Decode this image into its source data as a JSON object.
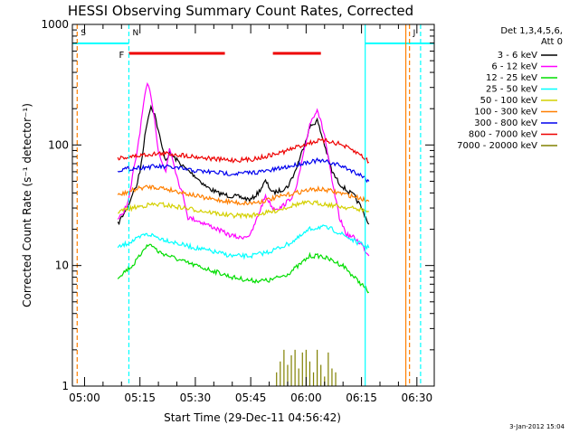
{
  "chart_data": {
    "type": "line",
    "title": "HESSI Observing Summary Count Rates, Corrected",
    "xlabel": "Start Time (29-Dec-11 04:56:42)",
    "ylabel": "Corrected Count Rate (s⁻¹ detector⁻¹)",
    "y_scale": "log",
    "ylim": [
      1,
      1000
    ],
    "xlim": [
      "04:56:42",
      "06:34:42"
    ],
    "x_ticks": [
      "05:00",
      "05:15",
      "05:30",
      "05:45",
      "06:00",
      "06:15",
      "06:30"
    ],
    "y_ticks": [
      "1",
      "10",
      "100",
      "1000"
    ],
    "date_stamp": "3-Jan-2012 15:04",
    "legend_header": [
      "Det 1,3,4,5,6,",
      "Att 0"
    ],
    "legend_position": "right",
    "series": [
      {
        "name": "3 - 6 keV",
        "color": "#000000",
        "x": [
          "05:09",
          "05:10",
          "05:11",
          "05:12",
          "05:13",
          "05:14",
          "05:15",
          "05:16",
          "05:17",
          "05:18",
          "05:19",
          "05:20",
          "05:21",
          "05:22",
          "05:23",
          "05:25",
          "05:27",
          "05:30",
          "05:33",
          "05:36",
          "05:39",
          "05:42",
          "05:45",
          "05:47",
          "05:49",
          "05:51",
          "05:53",
          "05:55",
          "05:57",
          "05:59",
          "06:01",
          "06:03",
          "06:05",
          "06:07",
          "06:09",
          "06:11",
          "06:13",
          "06:15",
          "06:17"
        ],
        "values": [
          22,
          25,
          28,
          32,
          40,
          45,
          60,
          100,
          160,
          210,
          180,
          130,
          95,
          75,
          85,
          75,
          65,
          55,
          45,
          40,
          38,
          37,
          35,
          40,
          50,
          40,
          42,
          45,
          60,
          90,
          140,
          160,
          100,
          60,
          48,
          42,
          38,
          30,
          22
        ]
      },
      {
        "name": "6 - 12 keV",
        "color": "#ff00ff",
        "x": [
          "05:09",
          "05:10",
          "05:11",
          "05:12",
          "05:13",
          "05:14",
          "05:15",
          "05:16",
          "05:17",
          "05:18",
          "05:19",
          "05:20",
          "05:21",
          "05:22",
          "05:23",
          "05:24",
          "05:25",
          "05:27",
          "05:28",
          "05:30",
          "05:33",
          "05:36",
          "05:39",
          "05:42",
          "05:45",
          "05:47",
          "05:49",
          "05:51",
          "05:53",
          "05:55",
          "05:57",
          "05:59",
          "06:01",
          "06:03",
          "06:05",
          "06:07",
          "06:09",
          "06:11",
          "06:13",
          "06:15",
          "06:17"
        ],
        "values": [
          24,
          26,
          30,
          35,
          55,
          80,
          130,
          220,
          320,
          260,
          160,
          90,
          70,
          60,
          95,
          75,
          55,
          35,
          25,
          24,
          22,
          20,
          18,
          17,
          18,
          26,
          38,
          30,
          30,
          34,
          40,
          75,
          150,
          200,
          120,
          50,
          25,
          18,
          17,
          15,
          12
        ]
      },
      {
        "name": "12 - 25 keV",
        "color": "#00dd00",
        "x": [
          "05:09",
          "05:11",
          "05:13",
          "05:15",
          "05:16",
          "05:18",
          "05:20",
          "05:23",
          "05:26",
          "05:30",
          "05:35",
          "05:40",
          "05:45",
          "05:50",
          "05:55",
          "05:58",
          "06:01",
          "06:04",
          "06:07",
          "06:10",
          "06:13",
          "06:15",
          "06:17"
        ],
        "values": [
          8,
          9,
          10,
          12,
          14,
          15,
          13,
          12,
          11,
          10,
          9,
          8,
          7.5,
          7.5,
          8.5,
          10,
          12,
          12,
          11,
          10,
          8,
          7,
          6
        ]
      },
      {
        "name": "25 - 50 keV",
        "color": "#00ffff",
        "x": [
          "05:09",
          "05:11",
          "05:13",
          "05:15",
          "05:16",
          "05:18",
          "05:20",
          "05:23",
          "05:26",
          "05:30",
          "05:35",
          "05:40",
          "05:45",
          "05:50",
          "05:55",
          "05:58",
          "06:01",
          "06:04",
          "06:07",
          "06:10",
          "06:13",
          "06:15",
          "06:17"
        ],
        "values": [
          14,
          15,
          16,
          17,
          18,
          18,
          17,
          16,
          15,
          14,
          13,
          12,
          12,
          13,
          15,
          17,
          20,
          21,
          20,
          18,
          16,
          15,
          14
        ]
      },
      {
        "name": "50 - 100 keV",
        "color": "#d4d000",
        "x": [
          "05:09",
          "05:11",
          "05:13",
          "05:15",
          "05:18",
          "05:21",
          "05:24",
          "05:27",
          "05:30",
          "05:33",
          "05:36",
          "05:39",
          "05:42",
          "05:45",
          "05:48",
          "05:51",
          "05:54",
          "05:57",
          "06:00",
          "06:03",
          "06:06",
          "06:09",
          "06:12",
          "06:15",
          "06:17"
        ],
        "values": [
          28,
          29,
          30,
          31,
          32,
          32,
          31,
          30,
          29,
          28,
          27,
          26,
          26,
          26,
          27,
          28,
          30,
          32,
          33,
          33,
          32,
          31,
          30,
          29,
          28
        ]
      },
      {
        "name": "100 - 300 keV",
        "color": "#ff7f00",
        "x": [
          "05:09",
          "05:11",
          "05:13",
          "05:15",
          "05:18",
          "05:21",
          "05:24",
          "05:27",
          "05:30",
          "05:33",
          "05:36",
          "05:39",
          "05:42",
          "05:45",
          "05:48",
          "05:51",
          "05:54",
          "05:57",
          "06:00",
          "06:03",
          "06:06",
          "06:09",
          "06:12",
          "06:15",
          "06:17"
        ],
        "values": [
          38,
          40,
          42,
          44,
          45,
          44,
          42,
          40,
          38,
          36,
          35,
          34,
          33,
          33,
          34,
          36,
          38,
          40,
          42,
          43,
          42,
          40,
          38,
          36,
          34
        ]
      },
      {
        "name": "300 - 800 keV",
        "color": "#0000ee",
        "x": [
          "05:09",
          "05:11",
          "05:13",
          "05:15",
          "05:18",
          "05:21",
          "05:24",
          "05:27",
          "05:30",
          "05:33",
          "05:36",
          "05:39",
          "05:42",
          "05:45",
          "05:48",
          "05:51",
          "05:54",
          "05:57",
          "06:00",
          "06:03",
          "06:06",
          "06:09",
          "06:12",
          "06:15",
          "06:17"
        ],
        "values": [
          62,
          63,
          64,
          65,
          66,
          66,
          65,
          63,
          61,
          60,
          59,
          58,
          58,
          59,
          60,
          62,
          65,
          68,
          72,
          74,
          72,
          68,
          62,
          56,
          50
        ]
      },
      {
        "name": "800 - 7000 keV",
        "color": "#ee0000",
        "x": [
          "05:09",
          "05:11",
          "05:13",
          "05:15",
          "05:18",
          "05:21",
          "05:24",
          "05:27",
          "05:30",
          "05:33",
          "05:36",
          "05:39",
          "05:42",
          "05:45",
          "05:48",
          "05:51",
          "05:54",
          "05:57",
          "06:00",
          "06:03",
          "06:06",
          "06:09",
          "06:12",
          "06:15",
          "06:17"
        ],
        "values": [
          78,
          79,
          80,
          82,
          84,
          85,
          84,
          82,
          80,
          78,
          76,
          75,
          75,
          76,
          79,
          83,
          88,
          95,
          102,
          108,
          108,
          102,
          92,
          82,
          72
        ]
      },
      {
        "name": "7000 - 20000 keV",
        "color": "#808000",
        "x": [
          "05:52",
          "05:53",
          "05:54",
          "05:55",
          "05:56",
          "05:57",
          "05:58",
          "05:59",
          "06:00",
          "06:01",
          "06:02",
          "06:03",
          "06:04",
          "06:05",
          "06:06",
          "06:07",
          "06:08"
        ],
        "values": [
          1.3,
          1.6,
          2,
          1.5,
          1.8,
          2,
          1.4,
          1.9,
          2,
          1.6,
          1.3,
          2,
          1.5,
          1.2,
          1.9,
          1.4,
          1.3
        ]
      }
    ],
    "flag_segments": [
      {
        "label": "F",
        "color": "#ee0000",
        "start": "05:12",
        "end": "05:38"
      },
      {
        "label": "",
        "color": "#ee0000",
        "start": "05:51",
        "end": "06:04"
      }
    ],
    "saa_segments": [
      {
        "label": "S",
        "color": "#00ffff",
        "start": "04:56:42",
        "end": "05:12"
      },
      {
        "label": "",
        "color": "#00ffff",
        "start": "06:16",
        "end": "06:34:42"
      }
    ],
    "vertical_markers": [
      {
        "time": "04:58",
        "color": "#ff7f00",
        "style": "dashed",
        "label": "S"
      },
      {
        "time": "05:12",
        "color": "#00ffff",
        "style": "dashed",
        "label": "N"
      },
      {
        "time": "06:16",
        "color": "#00ffff",
        "style": "solid",
        "label": ""
      },
      {
        "time": "06:27",
        "color": "#ff7f00",
        "style": "solid",
        "label": ""
      },
      {
        "time": "06:28",
        "color": "#ff7f00",
        "style": "dashed",
        "label": "J"
      },
      {
        "time": "06:31",
        "color": "#00ffff",
        "style": "dashed",
        "label": ""
      }
    ]
  }
}
